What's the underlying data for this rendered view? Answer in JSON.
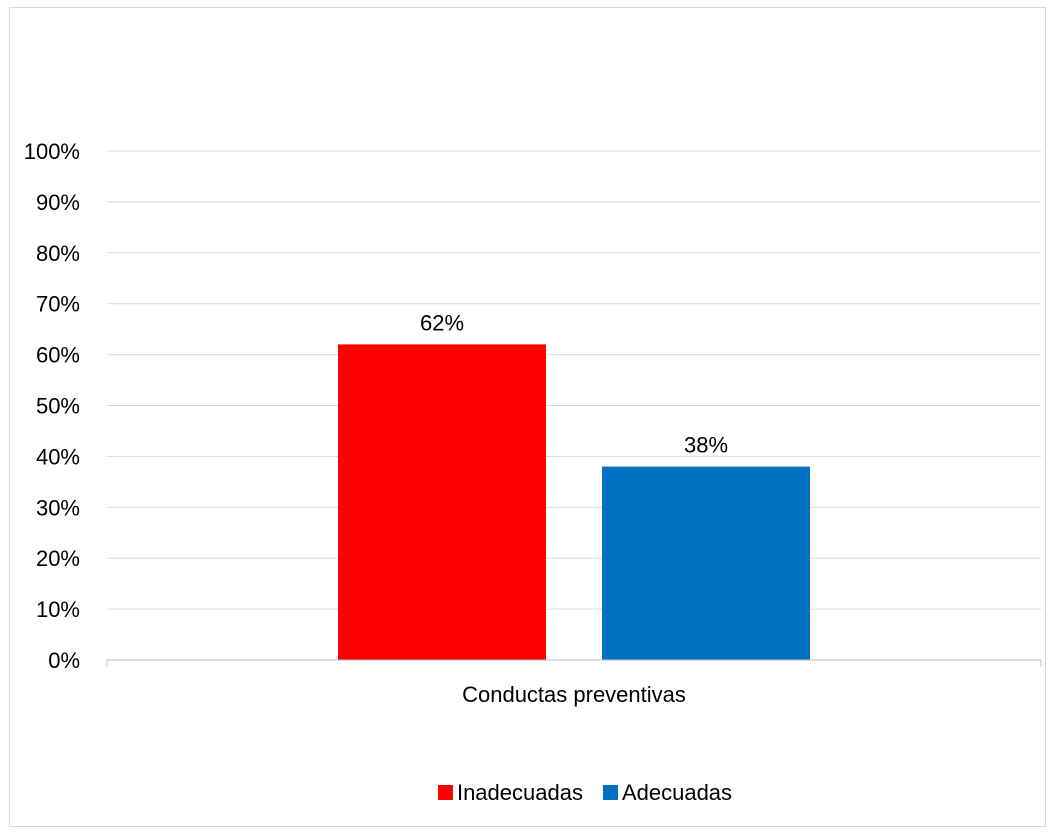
{
  "chart_data": {
    "type": "bar",
    "categories": [
      "Conductas preventivas"
    ],
    "series": [
      {
        "name": "Inadecuadas",
        "values": [
          62
        ],
        "color": "#ff0000",
        "label": "62%"
      },
      {
        "name": "Adecuadas",
        "values": [
          38
        ],
        "color": "#0070c0",
        "label": "38%"
      }
    ],
    "title": "",
    "xlabel": "",
    "ylabel": "",
    "ylim": [
      0,
      100
    ],
    "ytick_labels": [
      "0%",
      "10%",
      "20%",
      "30%",
      "40%",
      "50%",
      "60%",
      "70%",
      "80%",
      "90%",
      "100%"
    ],
    "grid": true,
    "legend_position": "bottom",
    "colors": {
      "gridline": "#d9d9d9",
      "axis": "#bfbfbf",
      "frame": "#d9d9d9"
    }
  }
}
